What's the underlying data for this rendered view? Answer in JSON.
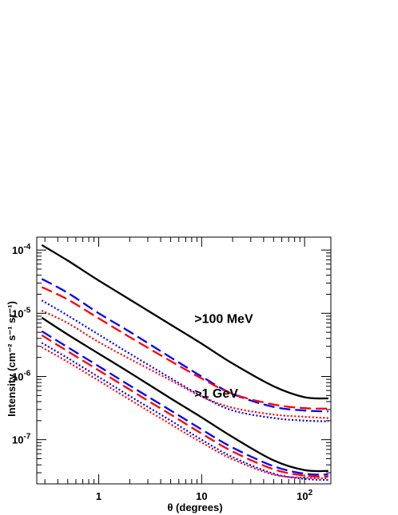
{
  "chart_data": {
    "type": "line",
    "xlabel": "θ (degrees)",
    "ylabel": "Intensity (cm⁻² s⁻¹ sr⁻¹)",
    "x_scale": "log",
    "y_scale": "log",
    "xlim": [
      0.25,
      180
    ],
    "ylim": [
      2e-08,
      0.00016
    ],
    "x_ticks": [
      {
        "value": 1,
        "label": "1"
      },
      {
        "value": 10,
        "label": "10"
      },
      {
        "value": 100,
        "label": "10",
        "exp": "2"
      }
    ],
    "y_ticks": [
      {
        "value": 1e-07,
        "label": "10",
        "exp": "-7"
      },
      {
        "value": 1e-06,
        "label": "10",
        "exp": "-6"
      },
      {
        "value": 1e-05,
        "label": "10",
        "exp": "-5"
      },
      {
        "value": 0.0001,
        "label": "10",
        "exp": "-4"
      }
    ],
    "annotations": [
      {
        "text": ">100 MeV",
        "x": 8.5,
        "y": 7e-06
      },
      {
        "text": ">1 GeV",
        "x": 8.5,
        "y": 4.6e-07
      }
    ],
    "grid": false,
    "legend": "none",
    "series": [
      {
        "group": ">100 MeV",
        "color": "#000000",
        "style": "solid",
        "x": [
          0.28,
          0.5,
          1,
          2,
          5,
          10,
          20,
          50,
          100,
          170
        ],
        "y": [
          0.00012,
          6.8e-05,
          3.3e-05,
          1.65e-05,
          6.6e-06,
          3.3e-06,
          1.6e-06,
          7e-07,
          4.7e-07,
          4.5e-07
        ]
      },
      {
        "group": ">100 MeV",
        "color": "#0000ff",
        "style": "dashed",
        "x": [
          0.28,
          0.5,
          1,
          2,
          5,
          10,
          20,
          50,
          100,
          170
        ],
        "y": [
          3.5e-05,
          2.1e-05,
          1e-05,
          5.1e-06,
          2e-06,
          1e-06,
          5.3e-07,
          3.3e-07,
          2.9e-07,
          2.8e-07
        ]
      },
      {
        "group": ">100 MeV",
        "color": "#ff0000",
        "style": "dashed",
        "x": [
          0.28,
          0.5,
          1,
          2,
          5,
          10,
          20,
          50,
          100,
          170
        ],
        "y": [
          2.6e-05,
          1.65e-05,
          8.3e-06,
          4.2e-06,
          1.75e-06,
          9.3e-07,
          5.3e-07,
          3.6e-07,
          3.15e-07,
          3.1e-07
        ]
      },
      {
        "group": ">100 MeV",
        "color": "#0000ff",
        "style": "dotted",
        "x": [
          0.28,
          0.5,
          1,
          2,
          5,
          10,
          20,
          50,
          100,
          170
        ],
        "y": [
          1.6e-05,
          9.2e-06,
          4.6e-06,
          2.3e-06,
          9.4e-07,
          4.9e-07,
          2.9e-07,
          2.2e-07,
          2e-07,
          1.95e-07
        ]
      },
      {
        "group": ">100 MeV",
        "color": "#ff0000",
        "style": "dotted",
        "x": [
          0.28,
          0.5,
          1,
          2,
          5,
          10,
          20,
          50,
          100,
          170
        ],
        "y": [
          1.1e-05,
          7e-06,
          3.5e-06,
          1.9e-06,
          8.7e-07,
          4.8e-07,
          3.2e-07,
          2.5e-07,
          2.3e-07,
          2.2e-07
        ]
      },
      {
        "group": ">1 GeV",
        "color": "#000000",
        "style": "solid",
        "x": [
          0.28,
          0.5,
          1,
          2,
          5,
          10,
          20,
          50,
          100,
          170
        ],
        "y": [
          8.5e-06,
          4.6e-06,
          2.3e-06,
          1.15e-06,
          4.5e-07,
          2.25e-07,
          1.1e-07,
          4.7e-08,
          3.3e-08,
          3.2e-08
        ]
      },
      {
        "group": ">1 GeV",
        "color": "#0000ff",
        "style": "dashed",
        "x": [
          0.28,
          0.5,
          1,
          2,
          5,
          10,
          20,
          50,
          100,
          170
        ],
        "y": [
          5.2e-06,
          2.9e-06,
          1.45e-06,
          7.2e-07,
          2.9e-07,
          1.45e-07,
          7.5e-08,
          3.8e-08,
          2.9e-08,
          2.8e-08
        ]
      },
      {
        "group": ">1 GeV",
        "color": "#ff0000",
        "style": "dashed",
        "x": [
          0.28,
          0.5,
          1,
          2,
          5,
          10,
          20,
          50,
          100,
          170
        ],
        "y": [
          4.5e-06,
          2.5e-06,
          1.25e-06,
          6.2e-07,
          2.5e-07,
          1.25e-07,
          6.5e-08,
          3.4e-08,
          2.7e-08,
          2.6e-08
        ]
      },
      {
        "group": ">1 GeV",
        "color": "#0000ff",
        "style": "dotted",
        "x": [
          0.28,
          0.5,
          1,
          2,
          5,
          10,
          20,
          50,
          100,
          170
        ],
        "y": [
          3.4e-06,
          1.95e-06,
          9.8e-07,
          4.9e-07,
          2e-07,
          1e-07,
          5.3e-08,
          2.9e-08,
          2.4e-08,
          2.3e-08
        ]
      },
      {
        "group": ">1 GeV",
        "color": "#ff0000",
        "style": "dotted",
        "x": [
          0.28,
          0.5,
          1,
          2,
          5,
          10,
          20,
          50,
          100,
          170
        ],
        "y": [
          2.9e-06,
          1.7e-06,
          8.6e-07,
          4.3e-07,
          1.75e-07,
          9e-08,
          4.9e-08,
          2.8e-08,
          2.5e-08,
          2.45e-08
        ]
      }
    ]
  }
}
